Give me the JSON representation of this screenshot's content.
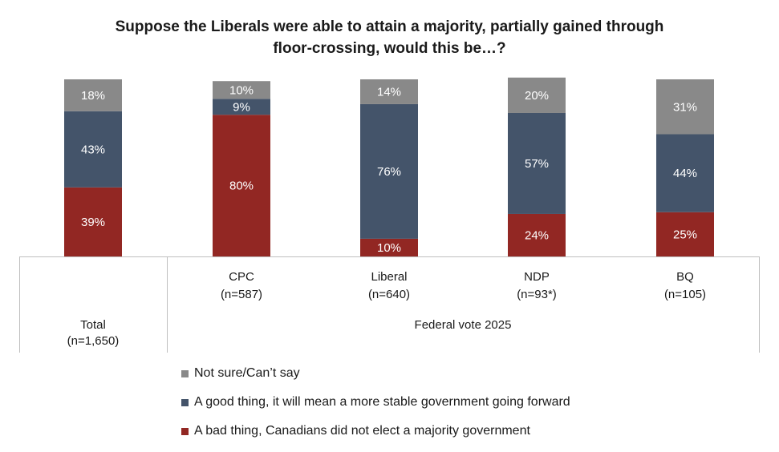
{
  "chart_data": {
    "type": "bar",
    "stacked": true,
    "title_lines": [
      "Suppose the Liberals were able to attain a majority, partially gained through",
      "floor-crossing, would this be…?"
    ],
    "categories": [
      {
        "label": "Total",
        "n": "(n=1,650)"
      },
      {
        "label": "CPC",
        "n": "(n=587)"
      },
      {
        "label": "Liberal",
        "n": "(n=640)"
      },
      {
        "label": "NDP",
        "n": "(n=93*)"
      },
      {
        "label": "BQ",
        "n": "(n=105)"
      }
    ],
    "group_label": "Federal vote 2025",
    "series": [
      {
        "name": "A bad thing, Canadians did not elect a majority government",
        "color": "#922723",
        "values": [
          39,
          80,
          10,
          24,
          25
        ]
      },
      {
        "name": "A good thing, it will mean a more stable government going forward",
        "color": "#44546a",
        "values": [
          43,
          9,
          76,
          57,
          44
        ]
      },
      {
        "name": "Not sure/Can’t say",
        "color": "#898989",
        "values": [
          18,
          10,
          14,
          20,
          31
        ]
      }
    ],
    "legend_order": [
      2,
      1,
      0
    ],
    "value_suffix": "%",
    "ylim": [
      0,
      100
    ]
  }
}
